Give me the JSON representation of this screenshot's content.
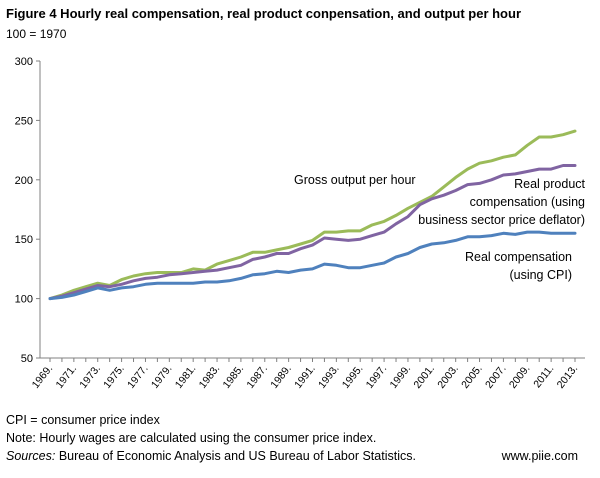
{
  "chart_data": {
    "type": "line",
    "title": "Figure 4  Hourly real compensation, real  product conpensation, and output per hour",
    "subtitle": "100  = 1970",
    "ylim": [
      50,
      300
    ],
    "yticks": [
      50,
      100,
      150,
      200,
      250,
      300
    ],
    "x_tick_labels": [
      "1969.",
      "1971.",
      "1973.",
      "1975.",
      "1977.",
      "1979.",
      "1981.",
      "1983.",
      "1985.",
      "1987.",
      "1989.",
      "1991.",
      "1993.",
      "1995.",
      "1997.",
      "1999.",
      "2001.",
      "2003.",
      "2005.",
      "2007.",
      "2009.",
      "2011.",
      "2013."
    ],
    "x": [
      1969,
      1970,
      1971,
      1972,
      1973,
      1974,
      1975,
      1976,
      1977,
      1978,
      1979,
      1980,
      1981,
      1982,
      1983,
      1984,
      1985,
      1986,
      1987,
      1988,
      1989,
      1990,
      1991,
      1992,
      1993,
      1994,
      1995,
      1996,
      1997,
      1998,
      1999,
      2000,
      2001,
      2002,
      2003,
      2004,
      2005,
      2006,
      2007,
      2008,
      2009,
      2010,
      2011,
      2012,
      2013
    ],
    "grid": false,
    "legend": "inline labels",
    "series": [
      {
        "name": "Gross output per hour",
        "color": "#9bbb59",
        "values": [
          100,
          103,
          107,
          110,
          113,
          111,
          116,
          119,
          121,
          122,
          122,
          122,
          125,
          124,
          129,
          132,
          135,
          139,
          139,
          141,
          143,
          146,
          149,
          156,
          156,
          157,
          157,
          162,
          165,
          170,
          176,
          181,
          186,
          194,
          202,
          209,
          214,
          216,
          219,
          221,
          229,
          236,
          236,
          238,
          241
        ]
      },
      {
        "name": "Real product compensation (using business sector price deflator)",
        "color": "#8064a2",
        "values": [
          100,
          102,
          105,
          108,
          111,
          110,
          112,
          115,
          117,
          118,
          120,
          121,
          122,
          123,
          124,
          126,
          128,
          133,
          135,
          138,
          138,
          142,
          145,
          151,
          150,
          149,
          150,
          153,
          156,
          163,
          169,
          179,
          184,
          187,
          191,
          196,
          197,
          200,
          204,
          205,
          207,
          209,
          209,
          212,
          212
        ]
      },
      {
        "name": "Real compensation (using CPI)",
        "color": "#4f81bd",
        "values": [
          100,
          101,
          103,
          106,
          109,
          107,
          109,
          110,
          112,
          113,
          113,
          113,
          113,
          114,
          114,
          115,
          117,
          120,
          121,
          123,
          122,
          124,
          125,
          129,
          128,
          126,
          126,
          128,
          130,
          135,
          138,
          143,
          146,
          147,
          149,
          152,
          152,
          153,
          155,
          154,
          156,
          156,
          155,
          155,
          155
        ]
      }
    ],
    "annotations": {
      "gross": "Gross output per hour",
      "product_lines": [
        "Real product",
        "compensation (using",
        "business  sector price deflator)"
      ],
      "comp_lines": [
        "Real compensation",
        "(using CPI)"
      ]
    }
  },
  "notes": {
    "cpi": "CPI = consumer price index",
    "note": "Note: Hourly wages are calculated using the consumer price index.",
    "sources_label": "Sources:",
    "sources_text": " Bureau of Economic Analysis and US Bureau of Labor Statistics.",
    "credit": "www.piie.com"
  }
}
